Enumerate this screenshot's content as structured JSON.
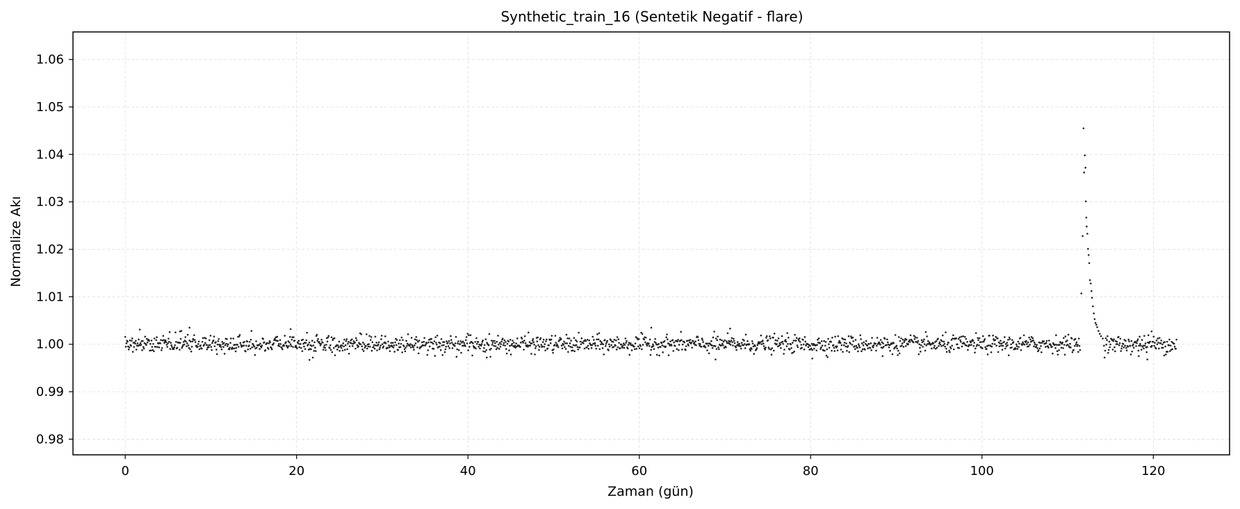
{
  "chart_data": {
    "type": "scatter",
    "title": "Synthetic_train_16 (Sentetik Negatif - flare)",
    "xlabel": "Zaman (gün)",
    "ylabel": "Normalize Akı",
    "xlim": [
      -6.1,
      128.9
    ],
    "ylim": [
      0.9767,
      1.0658
    ],
    "x_ticks": [
      0,
      20,
      40,
      60,
      80,
      100,
      120
    ],
    "x_tick_labels": [
      "0",
      "20",
      "40",
      "60",
      "80",
      "100",
      "120"
    ],
    "y_ticks": [
      0.98,
      0.99,
      1.0,
      1.01,
      1.02,
      1.03,
      1.04,
      1.05,
      1.06
    ],
    "y_tick_labels": [
      "0.98",
      "0.99",
      "1.00",
      "1.01",
      "1.02",
      "1.03",
      "1.04",
      "1.05",
      "1.06"
    ],
    "grid": true,
    "point_color": "#222222",
    "series": [
      {
        "baseline": {
          "x_start": 0.0,
          "x_end": 122.7,
          "count": 1800,
          "flux_mean": 1.0,
          "flux_sigma": 0.0009
        },
        "flare": {
          "peak_time": 111.9,
          "peak_flux": 1.0455,
          "points": [
            [
              111.75,
              1.0228
            ],
            [
              111.85,
              1.0455
            ],
            [
              111.92,
              1.0362
            ],
            [
              112.0,
              1.0398
            ],
            [
              112.08,
              1.0372
            ],
            [
              112.12,
              1.0301
            ],
            [
              112.18,
              1.0267
            ],
            [
              112.22,
              1.0248
            ],
            [
              112.3,
              1.0233
            ],
            [
              112.38,
              1.0201
            ],
            [
              112.45,
              1.0188
            ],
            [
              112.52,
              1.0171
            ],
            [
              112.6,
              1.0135
            ],
            [
              112.7,
              1.0128
            ],
            [
              112.78,
              1.0112
            ],
            [
              112.85,
              1.0098
            ],
            [
              112.95,
              1.008
            ],
            [
              113.05,
              1.0065
            ],
            [
              113.15,
              1.0053
            ],
            [
              113.25,
              1.0045
            ],
            [
              113.35,
              1.0041
            ],
            [
              113.45,
              1.0036
            ],
            [
              113.6,
              1.0028
            ],
            [
              113.75,
              1.0022
            ],
            [
              113.9,
              1.0017
            ],
            [
              114.1,
              1.0012
            ],
            [
              111.6,
              1.0107
            ]
          ]
        },
        "outliers": [
          [
            1.7,
            1.0031
          ],
          [
            6.4,
            1.0027
          ],
          [
            7.5,
            1.0035
          ],
          [
            19.3,
            1.0032
          ],
          [
            21.5,
            0.9967
          ],
          [
            61.4,
            1.0035
          ],
          [
            70.6,
            1.0033
          ],
          [
            68.9,
            0.9968
          ],
          [
            80.2,
            0.997
          ],
          [
            118.3,
            0.9975
          ],
          [
            119.3,
            0.9968
          ],
          [
            119.8,
            1.0027
          ],
          [
            88.4,
            0.9975
          ],
          [
            42.2,
            0.9972
          ]
        ]
      }
    ]
  }
}
